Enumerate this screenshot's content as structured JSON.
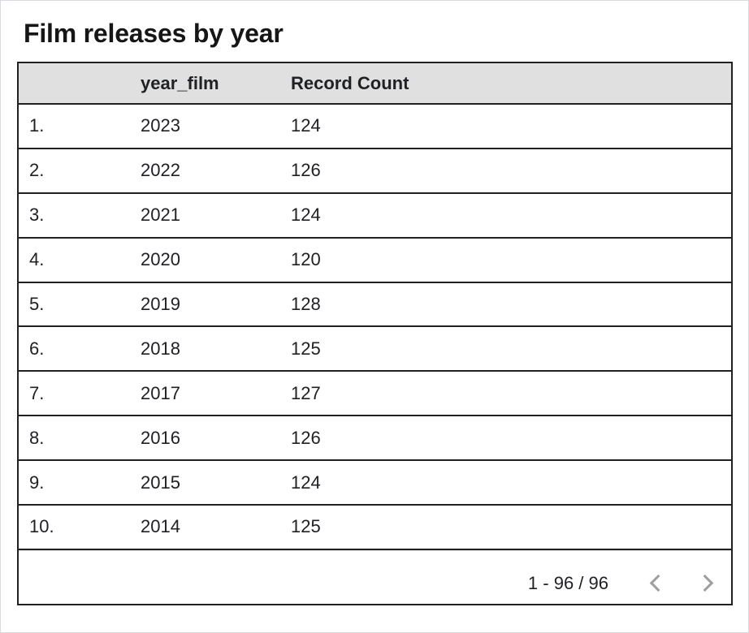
{
  "title": "Film releases by year",
  "colors": {
    "header_bg": "#e0e0e0",
    "table_border": "#212121",
    "text": "#202124",
    "chevron": "#9e9e9e",
    "card_border": "#d7dade"
  },
  "table": {
    "columns": [
      "",
      "year_film",
      "Record Count"
    ],
    "rows": [
      {
        "index": "1.",
        "year_film": "2023",
        "record_count": "124"
      },
      {
        "index": "2.",
        "year_film": "2022",
        "record_count": "126"
      },
      {
        "index": "3.",
        "year_film": "2021",
        "record_count": "124"
      },
      {
        "index": "4.",
        "year_film": "2020",
        "record_count": "120"
      },
      {
        "index": "5.",
        "year_film": "2019",
        "record_count": "128"
      },
      {
        "index": "6.",
        "year_film": "2018",
        "record_count": "125"
      },
      {
        "index": "7.",
        "year_film": "2017",
        "record_count": "127"
      },
      {
        "index": "8.",
        "year_film": "2016",
        "record_count": "126"
      },
      {
        "index": "9.",
        "year_film": "2015",
        "record_count": "124"
      },
      {
        "index": "10.",
        "year_film": "2014",
        "record_count": "125"
      }
    ]
  },
  "pagination": {
    "range": "1 - 96 / 96",
    "prev_icon": "chevron-left",
    "next_icon": "chevron-right"
  },
  "chart_data": {
    "type": "table",
    "title": "Film releases by year",
    "columns": [
      "year_film",
      "Record Count"
    ],
    "rows": [
      [
        2023,
        124
      ],
      [
        2022,
        126
      ],
      [
        2021,
        124
      ],
      [
        2020,
        120
      ],
      [
        2019,
        128
      ],
      [
        2018,
        125
      ],
      [
        2017,
        127
      ],
      [
        2016,
        126
      ],
      [
        2015,
        124
      ],
      [
        2014,
        125
      ]
    ],
    "visible_range": "1 - 96 / 96",
    "total_records": 96,
    "layout": {
      "header_background": "#e0e0e0",
      "row_numbers": true,
      "pagination": true
    }
  }
}
